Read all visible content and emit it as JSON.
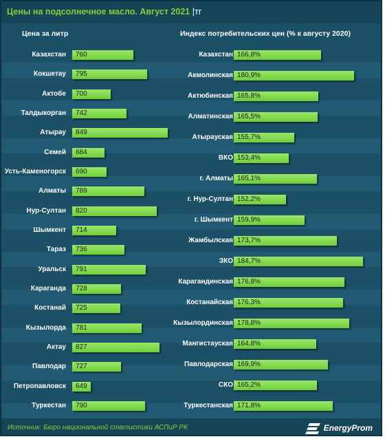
{
  "title": "Цены на подсолнечное масло. Август 2021",
  "title_unit": "|тг",
  "footer": {
    "source": "Источник: Бюро национальной статистики АСПиР РК",
    "logo_text": "EnergyProm"
  },
  "colors": {
    "background": "#1c5066",
    "bar": "#7fd33a",
    "title": "#7fd33a",
    "text": "#ffffff"
  },
  "chart_data": [
    {
      "type": "bar",
      "orientation": "horizontal",
      "title": "Цена за литр",
      "categories": [
        "Казахстан",
        "Кокшетау",
        "Актобе",
        "Талдыкорган",
        "Атырау",
        "Семей",
        "Усть-Каменогорск",
        "Алматы",
        "Нур-Султан",
        "Шымкент",
        "Тараз",
        "Уральск",
        "Караганда",
        "Костанай",
        "Кызылорда",
        "Актау",
        "Павлодар",
        "Петропавловск",
        "Туркестан"
      ],
      "values": [
        760,
        795,
        700,
        742,
        849,
        684,
        690,
        789,
        820,
        714,
        736,
        791,
        728,
        725,
        781,
        827,
        727,
        649,
        790
      ],
      "value_labels": [
        "760",
        "795",
        "700",
        "742",
        "849",
        "684",
        "690",
        "789",
        "820",
        "714",
        "736",
        "791",
        "728",
        "725",
        "781",
        "827",
        "727",
        "649",
        "790"
      ]
    },
    {
      "type": "bar",
      "orientation": "horizontal",
      "title": "Индекс потребительских цен (% к августу 2020)",
      "categories": [
        "Казахстан",
        "Акмолинская",
        "Актюбинская",
        "Алматинская",
        "Атырауская",
        "ВКО",
        "г. Алматы",
        "г. Нур-Султан",
        "г. Шымкент",
        "Жамбылская",
        "ЗКО",
        "Карагандинская",
        "Костанайская",
        "Кызылординская",
        "Мангистауская",
        "Павлодарская",
        "СКО",
        "Туркестанская"
      ],
      "values": [
        166.8,
        180.9,
        165.8,
        165.5,
        155.7,
        153.4,
        165.1,
        152.2,
        159.9,
        173.7,
        184.7,
        176.8,
        176.3,
        178.8,
        164.8,
        169.9,
        165.2,
        171.8
      ],
      "value_labels": [
        "166,8%",
        "180,9%",
        "165,8%",
        "165,5%",
        "155,7%",
        "153,4%",
        "165,1%",
        "152,2%",
        "159,9%",
        "173,7%",
        "184,7%",
        "176,8%",
        "176,3%",
        "178,8%",
        "164,8%",
        "169,9%",
        "165,2%",
        "171,8%"
      ]
    }
  ]
}
